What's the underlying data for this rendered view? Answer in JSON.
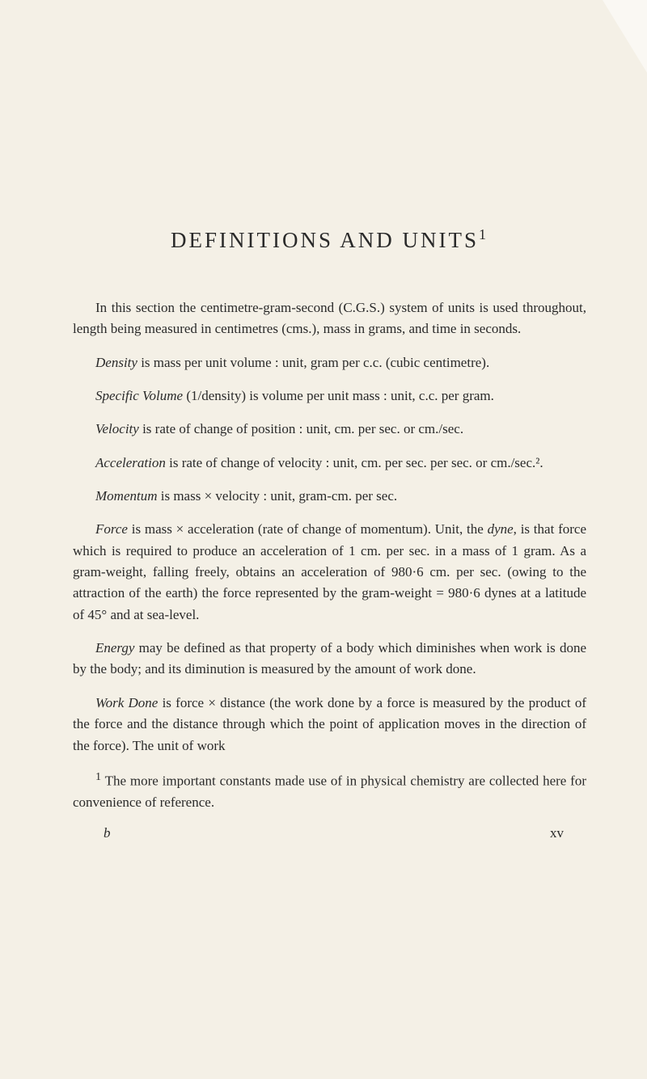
{
  "title": "DEFINITIONS AND UNITS",
  "title_sup": "1",
  "paragraphs": {
    "intro": "In this section the centimetre-gram-second (C.G.S.) system of units is used throughout, length being measured in centimetres (cms.), mass in grams, and time in seconds.",
    "density_term": "Density",
    "density_text": " is mass per unit volume : unit, gram per c.c. (cubic centi­metre).",
    "specvol_term": "Specific Volume",
    "specvol_text": " (1/density) is volume per unit mass : unit, c.c. per gram.",
    "velocity_term": "Velocity",
    "velocity_text": " is rate of change of position : unit, cm. per sec. or cm./sec.",
    "accel_term": "Acceleration",
    "accel_text": " is rate of change of velocity : unit, cm. per sec. per sec. or cm./sec.².",
    "momentum_term": "Momentum",
    "momentum_text": " is mass × velocity : unit, gram-cm. per sec.",
    "force_term": "Force",
    "force_text1": " is mass × acceleration (rate of change of momentum). Unit, the ",
    "force_dyne": "dyne",
    "force_text2": ", is that force which is required to produce an acceleration of 1 cm. per sec. in a mass of 1 gram. As a gram-weight, falling freely, obtains an acceleration of 980·6 cm. per sec. (owing to the attraction of the earth) the force represented by the gram-weight = 980·6 dynes at a lati­tude of 45° and at sea-level.",
    "energy_term": "Energy",
    "energy_text": " may be defined as that property of a body which diminishes when work is done by the body; and its diminution is measured by the amount of work done.",
    "work_term": "Work Done",
    "work_text": " is force × distance (the work done by a force is measured by the product of the force and the distance through which the point of application moves in the direction of the force). The unit of work"
  },
  "footnote_marker": "1",
  "footnote_text": " The more important constants made use of in physical chemistry are collected here for convenience of reference.",
  "footer_left": "b",
  "footer_right": "xv",
  "colors": {
    "background": "#f4f0e6",
    "text": "#2a2a2a"
  },
  "typography": {
    "title_fontsize": 27,
    "body_fontsize": 17,
    "line_height": 1.55
  }
}
